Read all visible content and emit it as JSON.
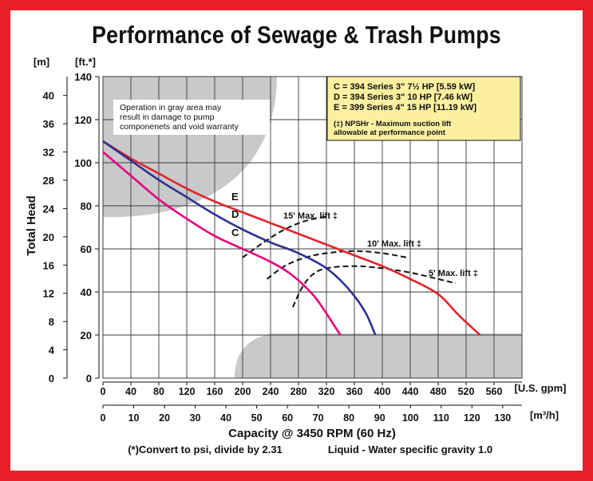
{
  "title": "Performance of Sewage & Trash Pumps",
  "chart_data": {
    "type": "line",
    "xlabel": "Capacity @ 3450 RPM (60 Hz)",
    "ylabel": "Total Head",
    "x_unit_primary": "[U.S. gpm]",
    "x_unit_secondary": "[m³/h]",
    "y_unit_left": "[m]",
    "y_unit_ft": "[ft.*]",
    "xlim": [
      0,
      600
    ],
    "ylim": [
      0,
      140
    ],
    "x_ticks": [
      "0",
      "40",
      "80",
      "120",
      "160",
      "200",
      "240",
      "280",
      "320",
      "360",
      "400",
      "440",
      "480",
      "520",
      "560"
    ],
    "x2_ticks": [
      "0",
      "10",
      "20",
      "30",
      "40",
      "50",
      "60",
      "70",
      "80",
      "90",
      "100",
      "110",
      "120",
      "130"
    ],
    "y_ft_ticks": [
      "0",
      "20",
      "40",
      "60",
      "80",
      "100",
      "120",
      "140"
    ],
    "y_m_ticks": [
      "0",
      "4",
      "8",
      "12",
      "16",
      "20",
      "24",
      "28",
      "32",
      "36",
      "40"
    ],
    "grid": true,
    "series": [
      {
        "name": "E",
        "color": "#e3242b",
        "points": [
          [
            0,
            110
          ],
          [
            40,
            102
          ],
          [
            80,
            95
          ],
          [
            120,
            88
          ],
          [
            160,
            82
          ],
          [
            200,
            77
          ],
          [
            240,
            72
          ],
          [
            280,
            67
          ],
          [
            320,
            62
          ],
          [
            360,
            57
          ],
          [
            400,
            52
          ],
          [
            440,
            46
          ],
          [
            480,
            39
          ],
          [
            510,
            29
          ],
          [
            540,
            20
          ]
        ]
      },
      {
        "name": "D",
        "color": "#2e3192",
        "points": [
          [
            0,
            110
          ],
          [
            40,
            101
          ],
          [
            80,
            92
          ],
          [
            120,
            84
          ],
          [
            160,
            76
          ],
          [
            200,
            69
          ],
          [
            240,
            63
          ],
          [
            280,
            58
          ],
          [
            320,
            51
          ],
          [
            350,
            42
          ],
          [
            375,
            31
          ],
          [
            390,
            20
          ]
        ]
      },
      {
        "name": "C",
        "color": "#e6007e",
        "points": [
          [
            0,
            105
          ],
          [
            40,
            94
          ],
          [
            80,
            83
          ],
          [
            120,
            74
          ],
          [
            160,
            66
          ],
          [
            200,
            60
          ],
          [
            240,
            54
          ],
          [
            270,
            48
          ],
          [
            300,
            39
          ],
          [
            320,
            30
          ],
          [
            340,
            20
          ]
        ]
      }
    ],
    "npsh_curves": [
      {
        "label": "15' Max. lift ‡",
        "points": [
          [
            200,
            56
          ],
          [
            230,
            63
          ],
          [
            260,
            69
          ],
          [
            290,
            73
          ],
          [
            320,
            75
          ]
        ]
      },
      {
        "label": "10' Max. lift ‡",
        "points": [
          [
            235,
            46
          ],
          [
            260,
            52
          ],
          [
            290,
            56
          ],
          [
            320,
            58
          ],
          [
            360,
            59
          ],
          [
            400,
            58
          ],
          [
            435,
            56
          ]
        ]
      },
      {
        "label": "5' Max. lift ‡",
        "points": [
          [
            272,
            33
          ],
          [
            285,
            42
          ],
          [
            300,
            48
          ],
          [
            320,
            51
          ],
          [
            360,
            52
          ],
          [
            400,
            51
          ],
          [
            440,
            49
          ],
          [
            480,
            46
          ],
          [
            505,
            44
          ]
        ]
      }
    ],
    "gray_note": "Operation in gray area may result in damage to pump componenets and void warranty",
    "legend": [
      "C = 394 Series 3\" 7½ HP [5.59 kW]",
      "D = 394 Series 3\" 10 HP [7.46 kW]",
      "E = 399 Series 4\" 15 HP [11.19 kW]"
    ],
    "legend_note": "(‡) NPSHr - Maximum suction lift allowable at performance point",
    "footnote": "(*)Convert to psi, divide by 2.31",
    "liquid_note": "Liquid - Water specific gravity 1.0"
  }
}
